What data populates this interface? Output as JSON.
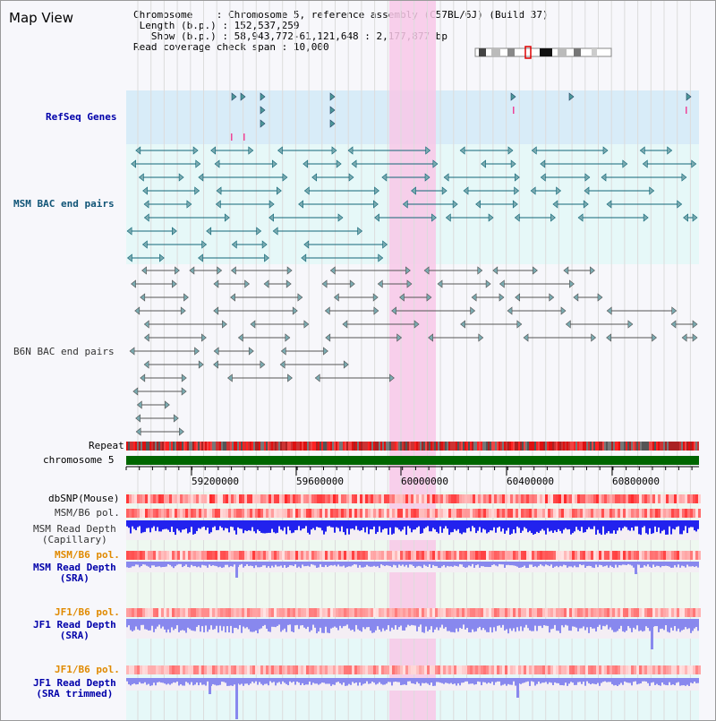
{
  "map_title": "Map View",
  "info": {
    "chromosome_key": "Chromosome",
    "chromosome_val": "Chromosome 5, reference assembly (C57BL/6J) (Build 37)",
    "length_key": "Length (b.p.)",
    "length_val": "152,537,259",
    "show_key": "Show (b.p.)",
    "show_val": "58,943,772-61,121,648 : 2,177,877 bp",
    "coverage_key": "Read coverage check span",
    "coverage_val": "10,000"
  },
  "tracks": {
    "refseq": "RefSeq Genes",
    "msm_bac": "MSM BAC end pairs",
    "b6n_bac": "B6N BAC end pairs",
    "repeat": "Repeat",
    "chromosome": "chromosome 5",
    "dbsnp": "dbSNP(Mouse)",
    "msm_b6_pol_1": "MSM/B6 pol.",
    "msm_depth_cap_1": "MSM Read Depth",
    "msm_depth_cap_2": "(Capillary)",
    "msm_b6_pol_2": "MSM/B6 pol.",
    "msm_depth_sra_1": "MSM Read Depth",
    "msm_depth_sra_2": "(SRA)",
    "jf1_b6_pol_1": "JF1/B6 pol.",
    "jf1_depth_sra_1": "JF1 Read Depth",
    "jf1_depth_sra_2": "(SRA)",
    "jf1_b6_pol_2": "JF1/B6 pol.",
    "jf1_depth_trim_1": "JF1 Read Depth",
    "jf1_depth_trim_2": "(SRA trimmed)"
  },
  "axis_ticks": [
    "59200000",
    "59600000",
    "60000000",
    "60400000",
    "60800000"
  ],
  "colors": {
    "refseq_bg": "#d8ecf8",
    "msm_bg": "#e6f8f8",
    "highlight": "#f8c8e8",
    "chromosome_bar": "#006600",
    "depth_blue": "#2222ee",
    "depth_light": "#8888ee",
    "snp_red": "#ee3333"
  }
}
